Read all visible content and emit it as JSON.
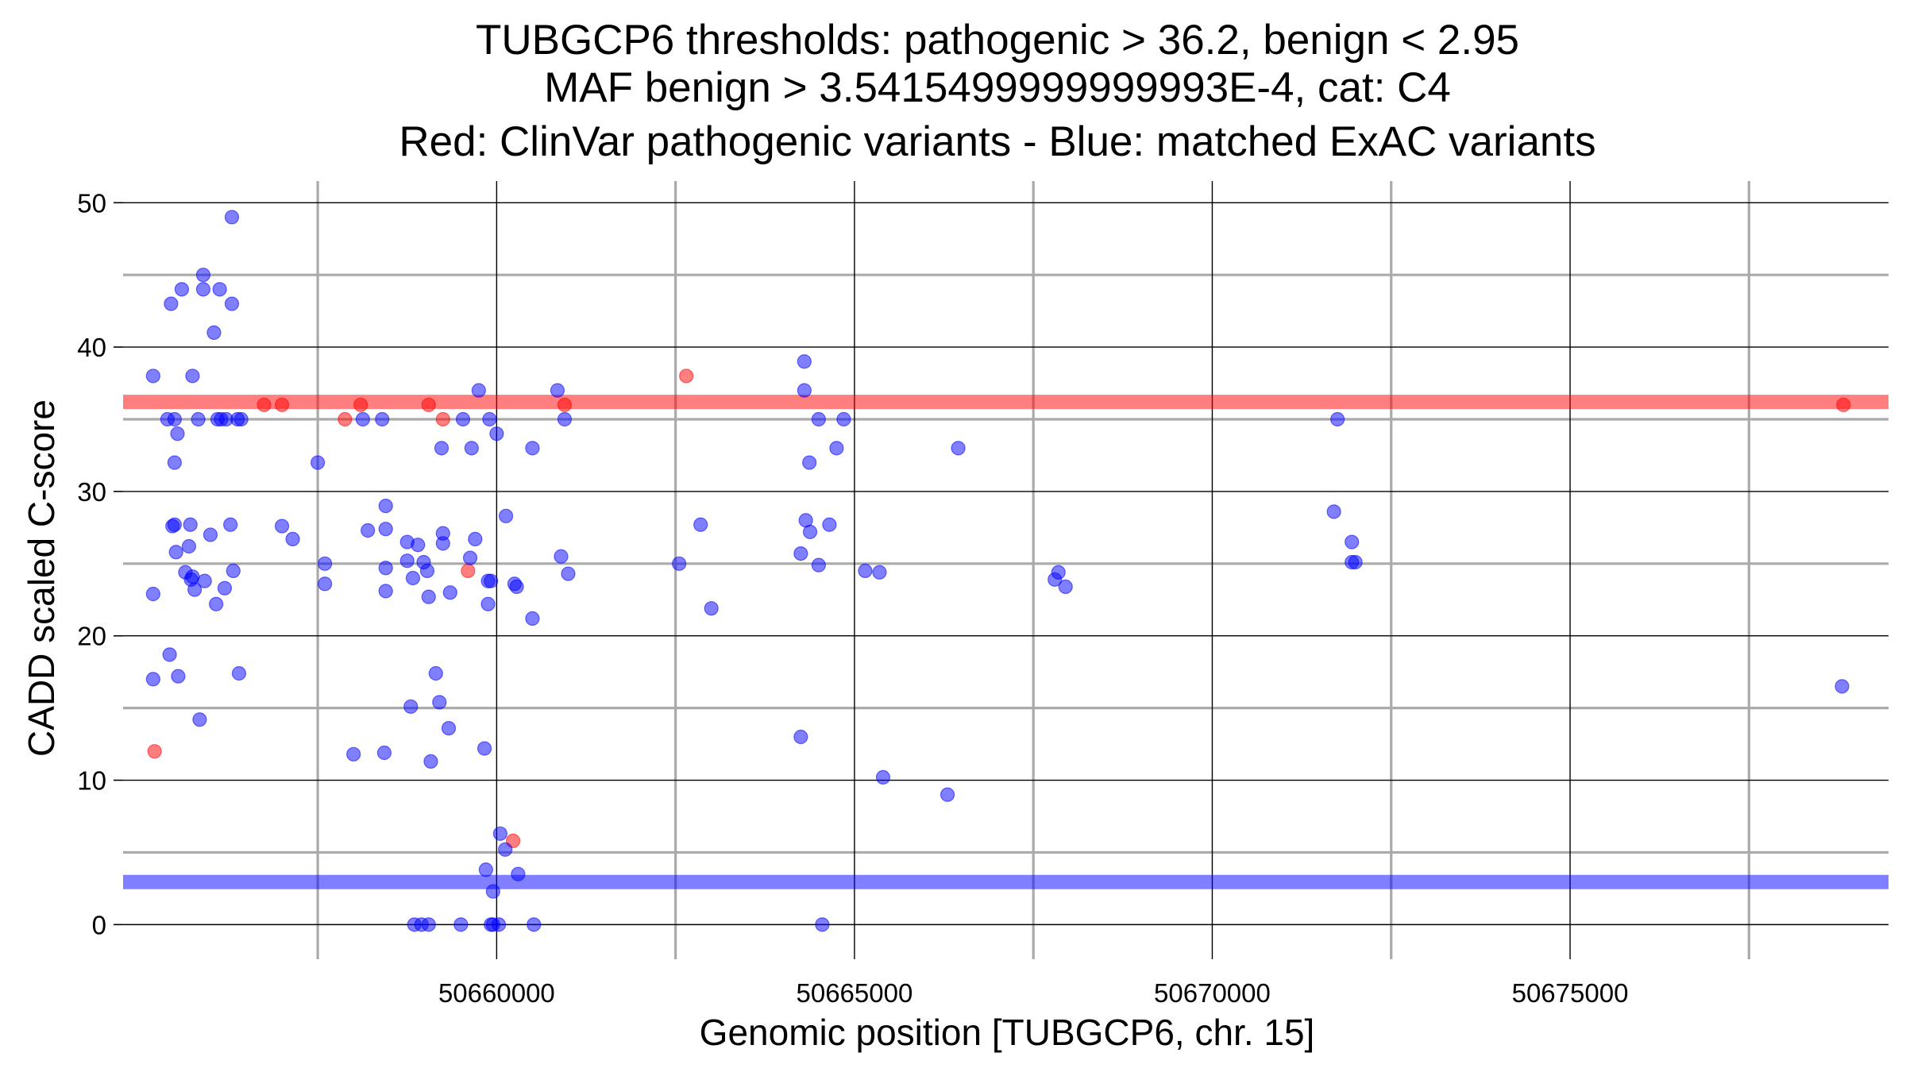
{
  "chart_data": {
    "type": "scatter",
    "title": [
      "TUBGCP6 thresholds: pathogenic > 36.2, benign < 2.95",
      "MAF benign > 3.5415499999999993E-4, cat: C4",
      "Red: ClinVar pathogenic variants - Blue: matched ExAC variants"
    ],
    "xlabel": "Genomic position [TUBGCP6, chr. 15]",
    "ylabel": "CADD scaled C-score",
    "xlim": [
      50654780,
      50679450
    ],
    "ylim": [
      -2.4,
      51.5
    ],
    "x_ticks": [
      50660000,
      50665000,
      50670000,
      50675000
    ],
    "x_tick_labels": [
      "50660000",
      "50665000",
      "50670000",
      "50675000"
    ],
    "y_ticks": [
      0,
      10,
      20,
      30,
      40,
      50
    ],
    "y_tick_labels": [
      "0",
      "10",
      "20",
      "30",
      "40",
      "50"
    ],
    "x_major_grid": [
      50660000,
      50665000,
      50670000,
      50675000
    ],
    "x_minor_grid": [
      50657500,
      50662500,
      50667500,
      50672500,
      50677500
    ],
    "y_major_grid": [
      0,
      10,
      20,
      30,
      40,
      50
    ],
    "y_minor_grid": [
      5,
      15,
      25,
      35,
      45
    ],
    "grid": true,
    "thresholds": [
      {
        "name": "pathogenic",
        "value": 36.2,
        "color": "#ff0000"
      },
      {
        "name": "benign",
        "value": 2.95,
        "color": "#0000ff"
      }
    ],
    "colors": {
      "clinvar": "#ff0000",
      "exac": "#0000ff"
    },
    "series": [
      {
        "key": "clinvar",
        "color": "#ff0000",
        "points": [
          [
            50655220,
            12.0
          ],
          [
            50656750,
            36.0
          ],
          [
            50657000,
            36.0
          ],
          [
            50657880,
            35.0
          ],
          [
            50658100,
            36.0
          ],
          [
            50659050,
            36.0
          ],
          [
            50659250,
            35.0
          ],
          [
            50659600,
            24.5
          ],
          [
            50660230,
            5.8
          ],
          [
            50660950,
            36.0
          ],
          [
            50662650,
            38.0
          ],
          [
            50678820,
            36.0
          ]
        ]
      },
      {
        "key": "exac",
        "color": "#0000ff",
        "points": [
          [
            50655200,
            38.0
          ],
          [
            50655200,
            22.9
          ],
          [
            50655200,
            17.0
          ],
          [
            50655400,
            35.0
          ],
          [
            50655430,
            18.7
          ],
          [
            50655450,
            43.0
          ],
          [
            50655470,
            27.6
          ],
          [
            50655500,
            35.0
          ],
          [
            50655500,
            32.0
          ],
          [
            50655500,
            27.7
          ],
          [
            50655520,
            25.8
          ],
          [
            50655540,
            34.0
          ],
          [
            50655550,
            17.2
          ],
          [
            50655600,
            44.0
          ],
          [
            50655650,
            24.4
          ],
          [
            50655700,
            26.2
          ],
          [
            50655720,
            27.7
          ],
          [
            50655730,
            23.9
          ],
          [
            50655750,
            38.0
          ],
          [
            50655750,
            24.1
          ],
          [
            50655780,
            23.2
          ],
          [
            50655830,
            35.0
          ],
          [
            50655850,
            14.2
          ],
          [
            50655900,
            45.0
          ],
          [
            50655900,
            44.0
          ],
          [
            50655920,
            23.8
          ],
          [
            50656000,
            27.0
          ],
          [
            50656050,
            41.0
          ],
          [
            50656080,
            22.2
          ],
          [
            50656100,
            35.0
          ],
          [
            50656130,
            44.0
          ],
          [
            50656150,
            35.0
          ],
          [
            50656200,
            23.3
          ],
          [
            50656220,
            35.0
          ],
          [
            50656280,
            27.7
          ],
          [
            50656300,
            49.0
          ],
          [
            50656300,
            43.0
          ],
          [
            50656320,
            24.5
          ],
          [
            50656380,
            35.0
          ],
          [
            50656400,
            17.4
          ],
          [
            50656430,
            35.0
          ],
          [
            50657000,
            27.6
          ],
          [
            50657150,
            26.7
          ],
          [
            50657500,
            32.0
          ],
          [
            50657600,
            25.0
          ],
          [
            50657600,
            23.6
          ],
          [
            50658000,
            11.8
          ],
          [
            50658130,
            35.0
          ],
          [
            50658200,
            27.3
          ],
          [
            50658400,
            35.0
          ],
          [
            50658430,
            11.9
          ],
          [
            50658450,
            29.0
          ],
          [
            50658450,
            27.4
          ],
          [
            50658450,
            24.7
          ],
          [
            50658450,
            23.1
          ],
          [
            50658750,
            26.5
          ],
          [
            50658750,
            25.2
          ],
          [
            50658800,
            15.1
          ],
          [
            50658830,
            24.0
          ],
          [
            50658850,
            0.0
          ],
          [
            50658900,
            26.3
          ],
          [
            50658950,
            0.0
          ],
          [
            50658980,
            25.1
          ],
          [
            50659030,
            24.5
          ],
          [
            50659050,
            22.7
          ],
          [
            50659050,
            0.0
          ],
          [
            50659080,
            11.3
          ],
          [
            50659150,
            17.4
          ],
          [
            50659200,
            15.4
          ],
          [
            50659230,
            33.0
          ],
          [
            50659250,
            27.1
          ],
          [
            50659250,
            26.4
          ],
          [
            50659330,
            13.6
          ],
          [
            50659350,
            23.0
          ],
          [
            50659500,
            0.0
          ],
          [
            50659530,
            35.0
          ],
          [
            50659630,
            25.4
          ],
          [
            50659650,
            33.0
          ],
          [
            50659700,
            26.7
          ],
          [
            50659750,
            37.0
          ],
          [
            50659830,
            12.2
          ],
          [
            50659880,
            22.2
          ],
          [
            50659900,
            35.0
          ],
          [
            50659880,
            23.8
          ],
          [
            50659920,
            23.8
          ],
          [
            50659920,
            0.0
          ],
          [
            50659950,
            0.0
          ],
          [
            50660030,
            0.0
          ],
          [
            50659850,
            3.8
          ],
          [
            50659950,
            2.3
          ],
          [
            50660000,
            34.0
          ],
          [
            50660050,
            6.3
          ],
          [
            50660120,
            5.2
          ],
          [
            50660130,
            28.3
          ],
          [
            50660250,
            23.6
          ],
          [
            50660280,
            23.4
          ],
          [
            50660300,
            3.5
          ],
          [
            50660500,
            33.0
          ],
          [
            50660500,
            21.2
          ],
          [
            50660520,
            0.0
          ],
          [
            50660850,
            37.0
          ],
          [
            50660900,
            25.5
          ],
          [
            50660950,
            35.0
          ],
          [
            50661000,
            24.3
          ],
          [
            50662550,
            25.0
          ],
          [
            50662850,
            27.7
          ],
          [
            50663000,
            21.9
          ],
          [
            50664250,
            13.0
          ],
          [
            50664250,
            25.7
          ],
          [
            50664300,
            39.0
          ],
          [
            50664300,
            37.0
          ],
          [
            50664320,
            28.0
          ],
          [
            50664370,
            32.0
          ],
          [
            50664380,
            27.2
          ],
          [
            50664500,
            35.0
          ],
          [
            50664500,
            24.9
          ],
          [
            50664550,
            0.0
          ],
          [
            50664650,
            27.7
          ],
          [
            50664750,
            33.0
          ],
          [
            50664850,
            35.0
          ],
          [
            50665150,
            24.5
          ],
          [
            50665350,
            24.4
          ],
          [
            50665400,
            10.2
          ],
          [
            50666300,
            9.0
          ],
          [
            50666450,
            33.0
          ],
          [
            50667800,
            23.9
          ],
          [
            50667850,
            24.4
          ],
          [
            50667950,
            23.4
          ],
          [
            50671750,
            35.0
          ],
          [
            50671700,
            28.6
          ],
          [
            50671950,
            26.5
          ],
          [
            50671950,
            25.1
          ],
          [
            50672000,
            25.1
          ],
          [
            50678800,
            16.5
          ]
        ]
      }
    ]
  }
}
